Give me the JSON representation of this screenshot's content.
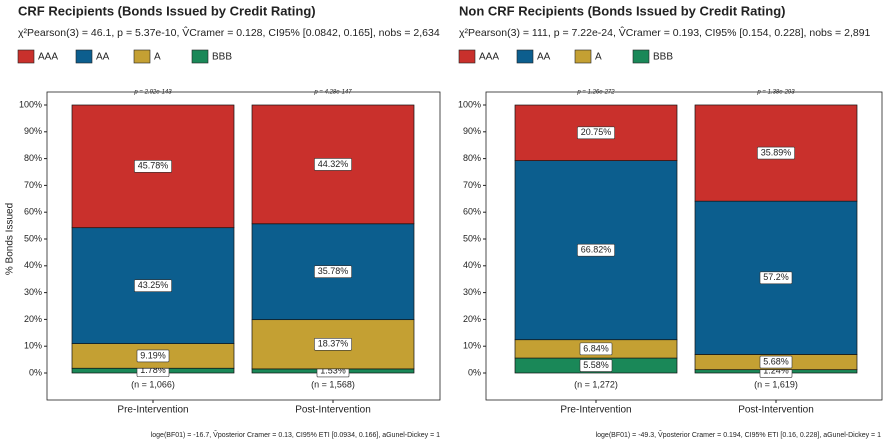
{
  "chart_data": [
    {
      "type": "stacked_bar",
      "title": "CRF Recipients (Bonds Issued by Credit Rating)",
      "subtitle": "χ²Pearson(3) = 46.1, p = 5.37e-10, V̂Cramer = 0.128, CI95% [0.0842, 0.165], nobs = 2,634",
      "ylabel": "% Bonds Issued",
      "caption": "loge(BF01) = -16.7, V̂posterior Cramer = 0.13, CI95% ETI [0.0934, 0.166], aGunel-Dickey = 1",
      "categories": [
        "Pre-Intervention",
        "Post-Intervention"
      ],
      "p_labels": [
        "p = 2.92e-143",
        "p = 4.28e-147"
      ],
      "n_labels": [
        "(n = 1,066)",
        "(n = 1,568)"
      ],
      "series": [
        {
          "name": "AAA",
          "color": "#c9302c",
          "values": [
            45.78,
            44.32
          ],
          "value_labels": [
            "45.78%",
            "44.32%"
          ]
        },
        {
          "name": "AA",
          "color": "#0c5e8e",
          "values": [
            43.25,
            35.78
          ],
          "value_labels": [
            "43.25%",
            "35.78%"
          ]
        },
        {
          "name": "A",
          "color": "#c4a033",
          "values": [
            9.19,
            18.37
          ],
          "value_labels": [
            "9.19%",
            "18.37%"
          ]
        },
        {
          "name": "BBB",
          "color": "#1a8858",
          "values": [
            1.78,
            1.53
          ],
          "value_labels": [
            "1.78%",
            "1.53%"
          ]
        }
      ],
      "ylim": [
        0,
        100
      ],
      "yticks": [
        {
          "value": 0,
          "label": "0%"
        },
        {
          "value": 10,
          "label": "10%"
        },
        {
          "value": 20,
          "label": "20%"
        },
        {
          "value": 30,
          "label": "30%"
        },
        {
          "value": 40,
          "label": "40%"
        },
        {
          "value": 50,
          "label": "50%"
        },
        {
          "value": 60,
          "label": "60%"
        },
        {
          "value": 70,
          "label": "70%"
        },
        {
          "value": 80,
          "label": "80%"
        },
        {
          "value": 90,
          "label": "90%"
        },
        {
          "value": 100,
          "label": "100%"
        }
      ]
    },
    {
      "type": "stacked_bar",
      "title": "Non CRF Recipients (Bonds Issued by Credit Rating)",
      "subtitle": "χ²Pearson(3) = 111, p = 7.22e-24, V̂Cramer = 0.193, CI95% [0.154, 0.228], nobs = 2,891",
      "caption": "loge(BF01) = -49.3, V̂posterior Cramer = 0.194, CI95% ETI [0.16, 0.228], aGunel-Dickey = 1",
      "categories": [
        "Pre-Intervention",
        "Post-Intervention"
      ],
      "p_labels": [
        "p = 1.26e-272",
        "p = 1.38e-293"
      ],
      "n_labels": [
        "(n = 1,272)",
        "(n = 1,619)"
      ],
      "series": [
        {
          "name": "AAA",
          "color": "#c9302c",
          "values": [
            20.75,
            35.89
          ],
          "value_labels": [
            "20.75%",
            "35.89%"
          ]
        },
        {
          "name": "AA",
          "color": "#0c5e8e",
          "values": [
            66.82,
            57.2
          ],
          "value_labels": [
            "66.82%",
            "57.2%"
          ]
        },
        {
          "name": "A",
          "color": "#c4a033",
          "values": [
            6.84,
            5.68
          ],
          "value_labels": [
            "6.84%",
            "5.68%"
          ]
        },
        {
          "name": "BBB",
          "color": "#1a8858",
          "values": [
            5.58,
            1.24
          ],
          "value_labels": [
            "5.58%",
            "1.24%"
          ]
        }
      ],
      "ylim": [
        0,
        100
      ],
      "yticks": [
        {
          "value": 0,
          "label": "0%"
        },
        {
          "value": 10,
          "label": "10%"
        },
        {
          "value": 20,
          "label": "20%"
        },
        {
          "value": 30,
          "label": "30%"
        },
        {
          "value": 40,
          "label": "40%"
        },
        {
          "value": 50,
          "label": "50%"
        },
        {
          "value": 60,
          "label": "60%"
        },
        {
          "value": 70,
          "label": "70%"
        },
        {
          "value": 80,
          "label": "80%"
        },
        {
          "value": 90,
          "label": "90%"
        },
        {
          "value": 100,
          "label": "100%"
        }
      ]
    }
  ]
}
